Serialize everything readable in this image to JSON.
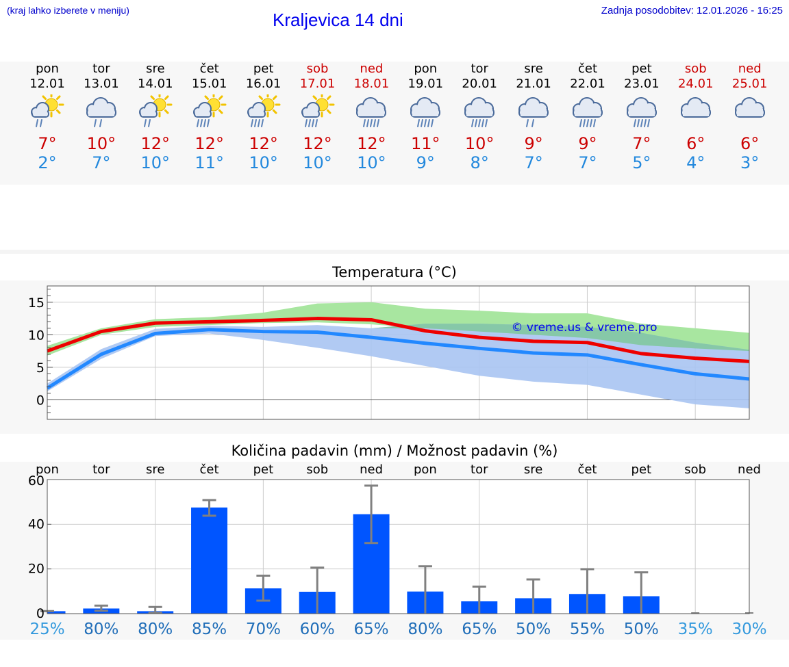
{
  "header": {
    "hint": "(kraj lahko izberete v meniju)",
    "title": "Kraljevica 14 dni",
    "updated": "Zadnja posodobitev: 12.01.2026 - 16:25"
  },
  "days": [
    {
      "name": "pon",
      "date": "12.01",
      "icon": "sun-cloud-rain-icon",
      "max": "7°",
      "min": "2°",
      "weekend": false
    },
    {
      "name": "tor",
      "date": "13.01",
      "icon": "cloud-rain-icon",
      "max": "10°",
      "min": "7°",
      "weekend": false
    },
    {
      "name": "sre",
      "date": "14.01",
      "icon": "sun-cloud-rain-icon",
      "max": "12°",
      "min": "10°",
      "weekend": false
    },
    {
      "name": "čet",
      "date": "15.01",
      "icon": "sun-cloud-heavy-rain-icon",
      "max": "12°",
      "min": "11°",
      "weekend": false
    },
    {
      "name": "pet",
      "date": "16.01",
      "icon": "sun-cloud-heavy-rain-icon",
      "max": "12°",
      "min": "10°",
      "weekend": false
    },
    {
      "name": "sob",
      "date": "17.01",
      "icon": "sun-cloud-heavy-rain-icon",
      "max": "12°",
      "min": "10°",
      "weekend": true
    },
    {
      "name": "ned",
      "date": "18.01",
      "icon": "cloud-heavy-rain-icon",
      "max": "12°",
      "min": "10°",
      "weekend": true
    },
    {
      "name": "pon",
      "date": "19.01",
      "icon": "cloud-heavy-rain-icon",
      "max": "11°",
      "min": "9°",
      "weekend": false
    },
    {
      "name": "tor",
      "date": "20.01",
      "icon": "cloud-heavy-rain-icon",
      "max": "10°",
      "min": "8°",
      "weekend": false
    },
    {
      "name": "sre",
      "date": "21.01",
      "icon": "cloud-rain-icon",
      "max": "9°",
      "min": "7°",
      "weekend": false
    },
    {
      "name": "čet",
      "date": "22.01",
      "icon": "cloud-heavy-rain-icon",
      "max": "9°",
      "min": "7°",
      "weekend": false
    },
    {
      "name": "pet",
      "date": "23.01",
      "icon": "cloud-heavy-rain-icon",
      "max": "7°",
      "min": "5°",
      "weekend": false
    },
    {
      "name": "sob",
      "date": "24.01",
      "icon": "cloud-icon",
      "max": "6°",
      "min": "4°",
      "weekend": true
    },
    {
      "name": "ned",
      "date": "25.01",
      "icon": "cloud-icon",
      "max": "6°",
      "min": "3°",
      "weekend": true
    }
  ],
  "colors": {
    "max_line": "#ee0000",
    "min_line": "#2288ff",
    "max_band": "#a8e6a0",
    "min_band": "#a9c4f2",
    "overlap_band": "#86c8a8",
    "bar": "#0055ff",
    "error": "#808080",
    "watermark": "#0000ee",
    "prob_high": "#1f6db8",
    "prob_low": "#3399dd"
  },
  "chart_data": [
    {
      "type": "line",
      "title": "Temperatura (°C)",
      "ylabel": "°C",
      "ylim": [
        -3,
        17.5
      ],
      "yticks": [
        0,
        5,
        10,
        15
      ],
      "watermark": "© vreme.us & vreme.pro",
      "x": [
        0,
        1,
        2,
        3,
        4,
        5,
        6,
        7,
        8,
        9,
        10,
        11,
        12,
        13
      ],
      "series": [
        {
          "name": "max",
          "values": [
            7.5,
            10.5,
            11.8,
            12.0,
            12.2,
            12.5,
            12.3,
            10.6,
            9.6,
            9.0,
            8.8,
            7.1,
            6.4,
            5.9
          ]
        },
        {
          "name": "min",
          "values": [
            1.8,
            7.0,
            10.2,
            10.8,
            10.5,
            10.4,
            9.6,
            8.7,
            7.9,
            7.2,
            6.9,
            5.4,
            4.0,
            3.2
          ]
        },
        {
          "name": "max_range_upper",
          "values": [
            8.3,
            11.0,
            12.4,
            12.7,
            13.4,
            14.8,
            15.0,
            14.0,
            13.7,
            13.3,
            13.3,
            11.7,
            11.0,
            10.3
          ]
        },
        {
          "name": "max_range_lower",
          "values": [
            6.8,
            10.0,
            11.2,
            11.5,
            11.8,
            11.9,
            11.6,
            11.0,
            10.5,
            10.0,
            9.5,
            8.4,
            7.9,
            7.5
          ]
        },
        {
          "name": "min_range_upper",
          "values": [
            2.5,
            7.8,
            10.9,
            11.4,
            11.2,
            11.5,
            11.0,
            11.7,
            11.7,
            11.5,
            11.2,
            10.3,
            8.8,
            7.7
          ]
        },
        {
          "name": "min_range_lower",
          "values": [
            1.3,
            6.3,
            9.8,
            10.2,
            9.2,
            8.0,
            6.7,
            5.2,
            3.7,
            2.8,
            2.3,
            0.8,
            -0.7,
            -1.3
          ]
        }
      ]
    },
    {
      "type": "bar",
      "title": "Količina padavin (mm) / Možnost padavin (%)",
      "ylim": [
        0,
        60
      ],
      "yticks": [
        0,
        20,
        40,
        60
      ],
      "categories": [
        "pon",
        "tor",
        "sre",
        "čet",
        "pet",
        "sob",
        "ned",
        "pon",
        "tor",
        "sre",
        "čet",
        "pet",
        "sob",
        "ned"
      ],
      "values": [
        1.1,
        2.3,
        1.1,
        47.5,
        11.3,
        9.8,
        44.5,
        9.9,
        5.5,
        6.9,
        8.8,
        7.8,
        0,
        0
      ],
      "err_low": [
        1.1,
        1.3,
        0.4,
        43.8,
        5.8,
        0,
        31.6,
        0,
        0,
        0,
        0,
        0,
        0,
        0
      ],
      "err_high": [
        1.1,
        3.6,
        3.0,
        50.8,
        17.0,
        20.6,
        57.3,
        21.2,
        12.1,
        15.3,
        19.9,
        18.5,
        0,
        0
      ],
      "probability": [
        "25%",
        "80%",
        "80%",
        "85%",
        "70%",
        "60%",
        "65%",
        "80%",
        "65%",
        "50%",
        "55%",
        "50%",
        "35%",
        "30%"
      ],
      "probability_high": [
        false,
        true,
        true,
        true,
        true,
        true,
        true,
        true,
        true,
        true,
        true,
        true,
        false,
        false
      ]
    }
  ]
}
